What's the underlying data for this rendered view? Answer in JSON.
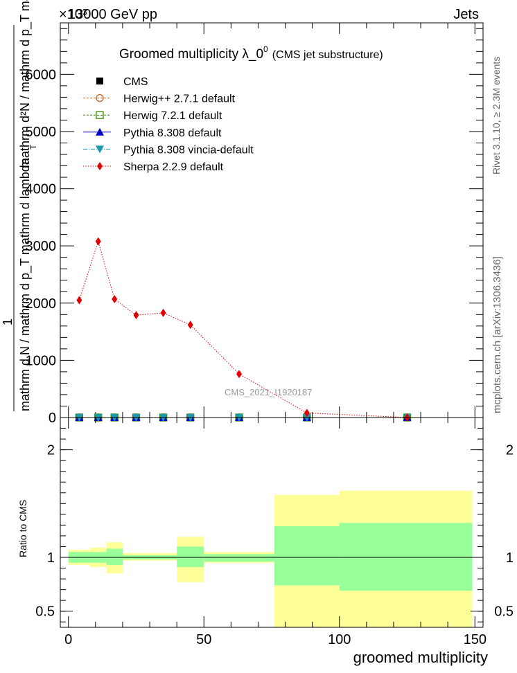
{
  "header": {
    "left": "13000 GeV pp",
    "right": "Jets",
    "exponent": "×10³"
  },
  "side_text": {
    "rivet": "Rivet 3.1.10, ≥ 2.3M events",
    "mcplots": "mcplots.cern.ch [arXiv:1306.3436]"
  },
  "watermark": "CMS_2021_I1920187",
  "chart_data": [
    {
      "type": "line",
      "title": "Groomed multiplicity  λ_0⁰ (CMS jet substructure)",
      "title_main": "Groomed multiplicity  λ_0",
      "title_sup": "0",
      "title_suffix": "(CMS jet substructure)",
      "ylabel_numerator": "1",
      "ylabel_denominator": "mathrm d N / mathrm d p_T mathrm d lambda",
      "ylabel_right": "mathrm d²N / mathrm d p_T mathrm d lambda",
      "ylabel_sub": "T",
      "xlim": [
        -3,
        153
      ],
      "ylim": [
        0,
        6.9
      ],
      "yticks": [
        0,
        1,
        2,
        3,
        4,
        5,
        6
      ],
      "ytick_labels": [
        "0",
        "1000",
        "2000",
        "3000",
        "4000",
        "5000",
        "6000"
      ],
      "grid": false,
      "legend_position": "top-left",
      "x": [
        4,
        11,
        17,
        25,
        35,
        45,
        63,
        88,
        125
      ],
      "series": [
        {
          "name": "CMS",
          "marker": "square",
          "color": "#000000",
          "values": [
            0,
            0,
            0,
            0,
            0,
            0,
            0,
            0,
            0
          ]
        },
        {
          "name": "Herwig++ 2.7.1 default",
          "marker": "circle-open",
          "color": "#c06020",
          "values": [
            0,
            0,
            0,
            0,
            0,
            0,
            0,
            0,
            0
          ]
        },
        {
          "name": "Herwig 7.2.1 default",
          "marker": "square-open",
          "color": "#3a8a00",
          "values": [
            0,
            0,
            0,
            0,
            0,
            0,
            0,
            0,
            0
          ]
        },
        {
          "name": "Pythia 8.308 default",
          "marker": "triangle-up",
          "color": "#0000cc",
          "values": [
            0,
            0,
            0,
            0,
            0,
            0,
            0,
            0,
            0
          ]
        },
        {
          "name": "Pythia 8.308 vincia-default",
          "marker": "triangle-down",
          "color": "#1a9ab0",
          "values": [
            0,
            0,
            0,
            0,
            0,
            0,
            0,
            0,
            0
          ]
        },
        {
          "name": "Sherpa 2.2.9 default",
          "marker": "diamond",
          "color": "#e00000",
          "values": [
            2.05,
            3.08,
            2.07,
            1.79,
            1.83,
            1.62,
            0.76,
            0.08,
            0.0
          ]
        }
      ]
    },
    {
      "type": "area",
      "ylabel": "Ratio to CMS",
      "xlabel": "groomed multiplicity",
      "xlim": [
        -3,
        153
      ],
      "ylim": [
        0.35,
        2.3
      ],
      "xticks": [
        0,
        50,
        100,
        150
      ],
      "yticks": [
        0.5,
        1,
        2
      ],
      "reference": 1,
      "grid": false,
      "bins": [
        {
          "x0": 0,
          "x1": 8,
          "inner": [
            0.95,
            1.05
          ],
          "outer": [
            0.93,
            1.07
          ]
        },
        {
          "x0": 8,
          "x1": 14,
          "inner": [
            0.95,
            1.05
          ],
          "outer": [
            0.91,
            1.09
          ]
        },
        {
          "x0": 14,
          "x1": 20,
          "inner": [
            0.93,
            1.08
          ],
          "outer": [
            0.85,
            1.14
          ]
        },
        {
          "x0": 20,
          "x1": 40,
          "inner": [
            0.98,
            1.02
          ],
          "outer": [
            0.97,
            1.04
          ]
        },
        {
          "x0": 40,
          "x1": 50,
          "inner": [
            0.91,
            1.1
          ],
          "outer": [
            0.77,
            1.19
          ]
        },
        {
          "x0": 50,
          "x1": 76,
          "inner": [
            0.96,
            1.03
          ],
          "outer": [
            0.95,
            1.05
          ]
        },
        {
          "x0": 76,
          "x1": 100,
          "inner": [
            0.74,
            1.29
          ],
          "outer": [
            0.35,
            1.58
          ]
        },
        {
          "x0": 100,
          "x1": 149,
          "inner": [
            0.69,
            1.32
          ],
          "outer": [
            0.35,
            1.62
          ]
        }
      ],
      "band_colors": {
        "inner": "#99ff99",
        "outer": "#ffff99"
      }
    }
  ]
}
